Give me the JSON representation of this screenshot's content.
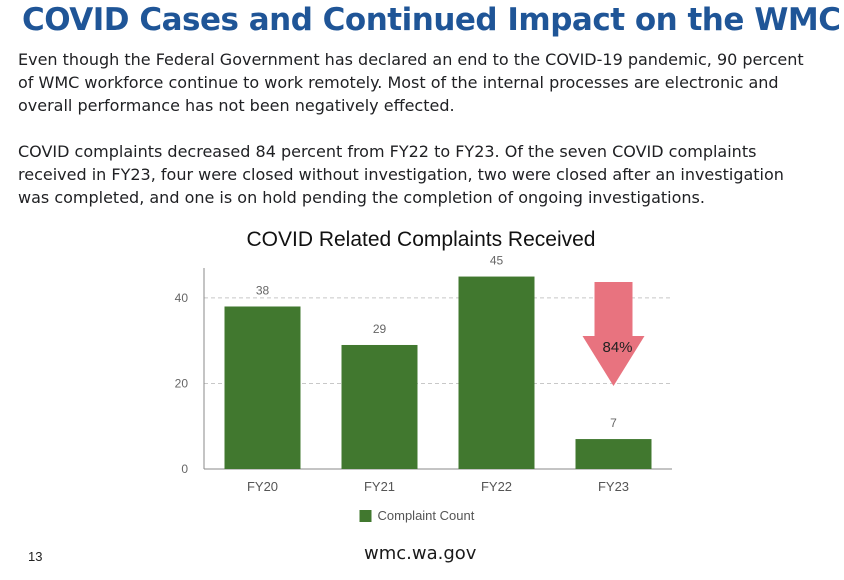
{
  "slide": {
    "title": "COVID Cases and Continued Impact on the WMC",
    "paragraph_1": "Even though the Federal Government has declared an end to the COVID-19 pandemic, 90 percent of WMC workforce continue to work remotely. Most of the internal processes are electronic and overall performance has not been negatively effected.",
    "paragraph_2": "COVID complaints decreased 84 percent from FY22 to FY23. Of the seven COVID complaints received in FY23, four were closed without investigation, two were closed after an investigation was completed, and one is on hold pending the completion of ongoing investigations.",
    "page_number": "13",
    "footer_url": "wmc.wa.gov"
  },
  "chart_data": {
    "type": "bar",
    "title": "COVID Related Complaints Received",
    "categories": [
      "FY20",
      "FY21",
      "FY22",
      "FY23"
    ],
    "series": [
      {
        "name": "Complaint Count",
        "values": [
          38,
          29,
          45,
          7
        ],
        "color": "#41782f"
      }
    ],
    "ylim": [
      0,
      47
    ],
    "yticks": [
      0,
      20,
      40
    ],
    "grid": true,
    "legend": "bottom",
    "annotation": {
      "text": "84%",
      "type": "down-arrow",
      "color": "#e8737f"
    }
  }
}
